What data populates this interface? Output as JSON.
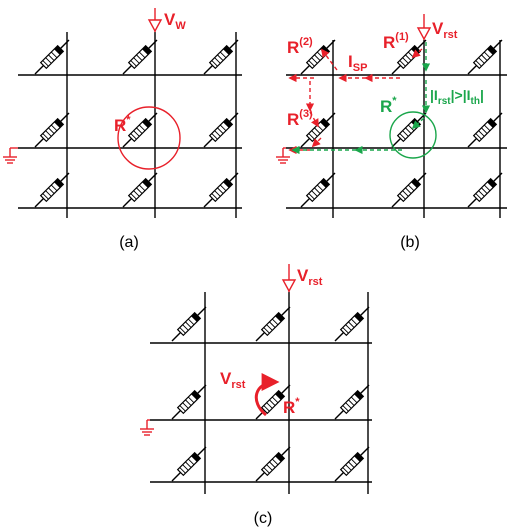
{
  "colors": {
    "wire": "#000000",
    "red": "#e8202a",
    "green": "#1aa64b",
    "device_fill": "#ffffff"
  },
  "panel_a": {
    "caption": "(a)",
    "source_main": "V",
    "source_sub": "W",
    "target_main": "R",
    "target_sup": "*"
  },
  "panel_b": {
    "caption": "(b)",
    "source_main": "V",
    "source_sub": "rst",
    "r1_main": "R",
    "r1_sup": "(1)",
    "r2_main": "R",
    "r2_sup": "(2)",
    "r3_main": "R",
    "r3_sup": "(3)",
    "current_main": "I",
    "current_sub": "SP",
    "target_main": "R",
    "target_sup": "*",
    "condition": {
      "open": "|I",
      "rst": "rst",
      "mid": "|>|I",
      "th": "th",
      "close": "|"
    }
  },
  "panel_c": {
    "caption": "(c)",
    "source_main": "V",
    "source_sub": "rst",
    "local_main": "V",
    "local_sub": "rst",
    "target_main": "R",
    "target_sup": "*"
  },
  "icons": [
    "voltage-source-icon",
    "ground-icon",
    "memristor-icon",
    "curved-arrow-icon"
  ]
}
